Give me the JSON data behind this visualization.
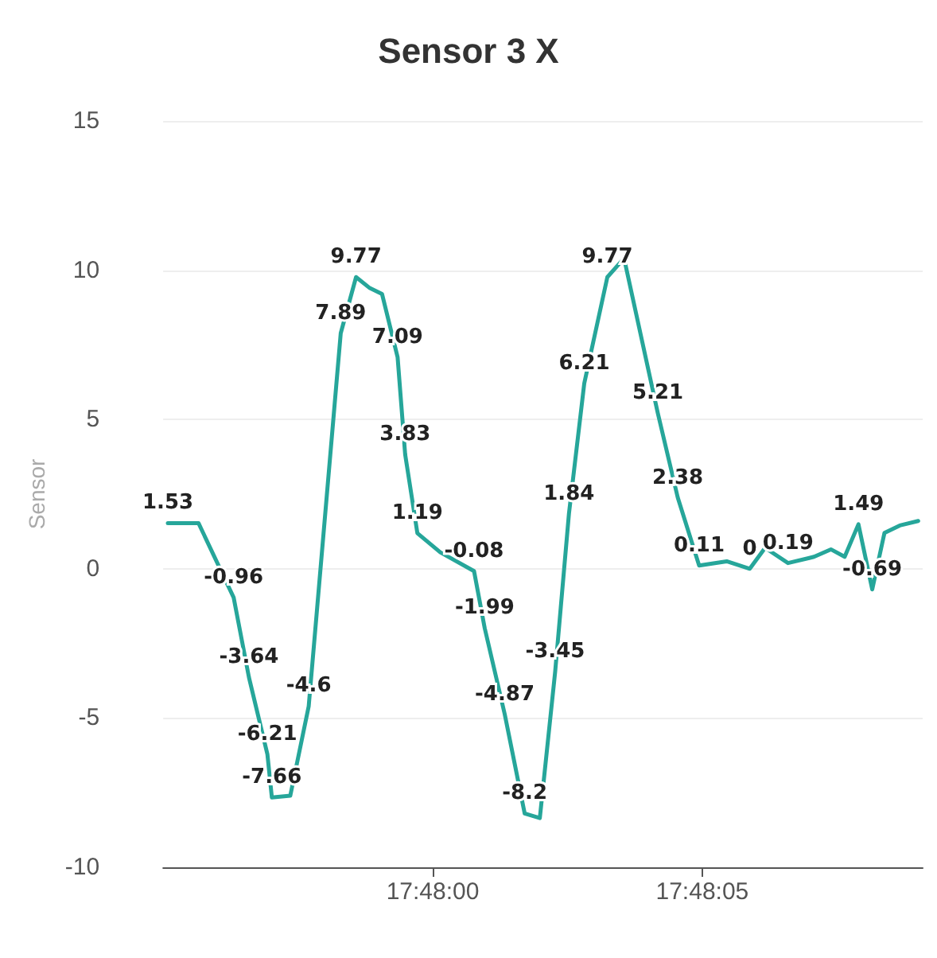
{
  "chart_data": {
    "type": "line",
    "title": "Sensor 3 X",
    "ylabel": "Sensor",
    "x": [
      17.798635,
      17.798793,
      17.798974,
      17.799053,
      17.799148,
      17.799171,
      17.799266,
      17.799361,
      17.799526,
      17.799605,
      17.799676,
      17.799739,
      17.799819,
      17.799858,
      17.799921,
      17.800039,
      17.800213,
      17.800268,
      17.800371,
      17.800474,
      17.800552,
      17.800631,
      17.800702,
      17.800781,
      17.8009,
      17.800986,
      17.80116,
      17.801263,
      17.801373,
      17.801515,
      17.801634,
      17.801713,
      17.801831,
      17.801965,
      17.802052,
      17.802123,
      17.802194,
      17.802265,
      17.802328,
      17.802407,
      17.802502
    ],
    "series": [
      {
        "color": "#26a69a",
        "values": [
          1.53,
          1.53,
          -0.96,
          -3.64,
          -6.21,
          -7.66,
          -7.6,
          -4.6,
          7.89,
          9.77,
          9.4,
          9.2,
          7.09,
          3.83,
          1.19,
          0.55,
          -0.08,
          -1.99,
          -4.87,
          -8.2,
          -8.35,
          -3.45,
          1.84,
          6.21,
          9.77,
          10.4,
          5.21,
          2.38,
          0.11,
          0.25,
          0,
          0.7,
          0.19,
          0.4,
          0.65,
          0.4,
          1.49,
          -0.69,
          1.2,
          1.45,
          1.6
        ],
        "value_labels": [
          "1.53",
          null,
          "-0.96",
          "-3.64",
          "-6.21",
          "-7.66",
          null,
          "-4.6",
          "7.89",
          "9.77",
          null,
          null,
          "7.09",
          "3.83",
          "1.19",
          null,
          "-0.08",
          "-1.99",
          "-4.87",
          "-8.2",
          null,
          "-3.45",
          "1.84",
          "6.21",
          "9.77",
          null,
          "5.21",
          "2.38",
          "0.11",
          null,
          "0",
          null,
          "0.19",
          null,
          null,
          null,
          "1.49",
          "-0.69",
          null,
          null,
          null
        ]
      }
    ],
    "xlim": [
      17.798611,
      17.802525
    ],
    "xticks": [
      {
        "value": 17.8,
        "label": "17:48:00"
      },
      {
        "value": 17.801389,
        "label": "17:48:05"
      }
    ],
    "ylim": [
      -10,
      15
    ],
    "yticks": [
      -10,
      -5,
      0,
      5,
      10,
      15
    ],
    "grid": "y",
    "marker": "none",
    "line_style": "solid"
  }
}
